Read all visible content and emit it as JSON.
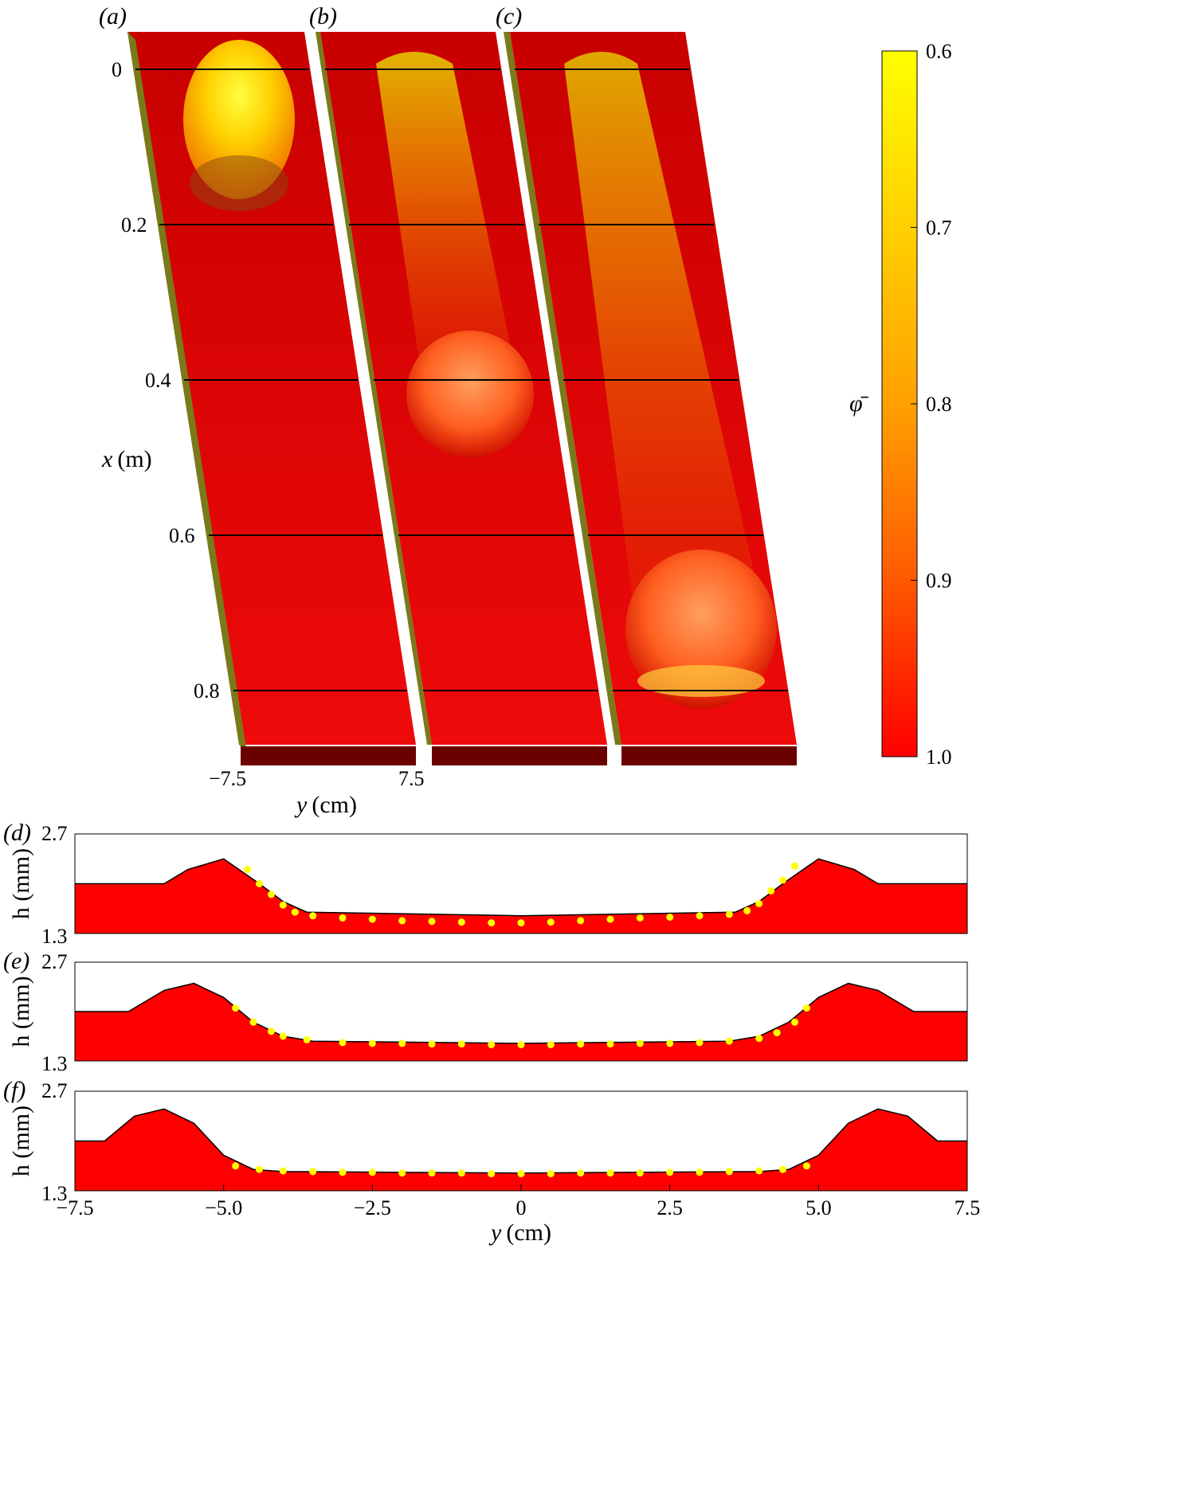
{
  "panels_3d": {
    "labels": [
      "(a)",
      "(b)",
      "(c)"
    ],
    "x_axis": {
      "var": "x",
      "unit": "(m)",
      "ticks": [
        "0",
        "0.2",
        "0.4",
        "0.6",
        "0.8"
      ]
    },
    "y_axis": {
      "var": "y",
      "unit": "(cm)",
      "ticks": [
        "−7.5",
        "7.5"
      ]
    }
  },
  "colorbar": {
    "label": "φ̄",
    "ticks": [
      "0.6",
      "0.7",
      "0.8",
      "0.9",
      "1.0"
    ],
    "colors": {
      "low": "#ffff00",
      "high": "#ff0000"
    }
  },
  "colors": {
    "fluid": "#ff0000",
    "dots": "#ffff00",
    "side": "#7a7a1a",
    "front": "#6a0000"
  },
  "chart_data": [
    {
      "type": "area",
      "panel": "(d)",
      "ylabel": "h (mm)",
      "ylim": [
        1.3,
        2.7
      ],
      "yticks": [
        "2.7",
        "1.3"
      ],
      "xlim": [
        -7.5,
        7.5
      ],
      "series": [
        {
          "style": "line",
          "x": [
            -7.5,
            -6.0,
            -5.6,
            -5.0,
            -4.4,
            -4.0,
            -3.6,
            0,
            3.6,
            4.0,
            4.4,
            5.0,
            5.6,
            6.0,
            7.5
          ],
          "y": [
            2.0,
            2.0,
            2.2,
            2.35,
            2.0,
            1.75,
            1.6,
            1.55,
            1.6,
            1.75,
            2.0,
            2.35,
            2.2,
            2.0,
            2.0
          ]
        },
        {
          "style": "dots",
          "x": [
            -4.6,
            -4.4,
            -4.2,
            -4.0,
            -3.8,
            -3.5,
            -3.0,
            -2.5,
            -2.0,
            -1.5,
            -1.0,
            -0.5,
            0,
            0.5,
            1.0,
            1.5,
            2.0,
            2.5,
            3.0,
            3.5,
            3.8,
            4.0,
            4.2,
            4.4,
            4.6
          ],
          "y": [
            2.2,
            2.0,
            1.85,
            1.7,
            1.6,
            1.55,
            1.52,
            1.5,
            1.48,
            1.47,
            1.46,
            1.45,
            1.45,
            1.46,
            1.48,
            1.5,
            1.52,
            1.53,
            1.55,
            1.57,
            1.62,
            1.72,
            1.9,
            2.05,
            2.25
          ]
        }
      ]
    },
    {
      "type": "area",
      "panel": "(e)",
      "ylabel": "h (mm)",
      "ylim": [
        1.3,
        2.7
      ],
      "yticks": [
        "2.7",
        "1.3"
      ],
      "xlim": [
        -7.5,
        7.5
      ],
      "series": [
        {
          "style": "line",
          "x": [
            -7.5,
            -6.6,
            -6.0,
            -5.5,
            -5.0,
            -4.5,
            -4.0,
            -3.5,
            0,
            3.5,
            4.0,
            4.5,
            5.0,
            5.5,
            6.0,
            6.6,
            7.5
          ],
          "y": [
            2.0,
            2.0,
            2.3,
            2.4,
            2.2,
            1.85,
            1.65,
            1.58,
            1.55,
            1.58,
            1.65,
            1.85,
            2.2,
            2.4,
            2.3,
            2.0,
            2.0
          ]
        },
        {
          "style": "dots",
          "x": [
            -4.8,
            -4.5,
            -4.2,
            -4.0,
            -3.6,
            -3.0,
            -2.5,
            -2.0,
            -1.5,
            -1.0,
            -0.5,
            0,
            0.5,
            1.0,
            1.5,
            2.0,
            2.5,
            3.0,
            3.5,
            4.0,
            4.3,
            4.6,
            4.8
          ],
          "y": [
            2.05,
            1.85,
            1.72,
            1.65,
            1.6,
            1.56,
            1.55,
            1.55,
            1.54,
            1.54,
            1.53,
            1.53,
            1.53,
            1.54,
            1.54,
            1.55,
            1.55,
            1.56,
            1.58,
            1.62,
            1.7,
            1.85,
            2.05
          ]
        }
      ]
    },
    {
      "type": "area",
      "panel": "(f)",
      "ylabel": "h (mm)",
      "ylim": [
        1.3,
        2.7
      ],
      "yticks": [
        "2.7",
        "1.3"
      ],
      "xlim": [
        -7.5,
        7.5
      ],
      "xticks": [
        "−7.5",
        "−5.0",
        "−2.5",
        "0",
        "2.5",
        "5.0",
        "7.5"
      ],
      "xticks_values": [
        -7.5,
        -5.0,
        -2.5,
        0,
        2.5,
        5.0,
        7.5
      ],
      "xlabel_var": "y",
      "xlabel_unit": "(cm)",
      "series": [
        {
          "style": "line",
          "x": [
            -7.5,
            -7.0,
            -6.5,
            -6.0,
            -5.5,
            -5.0,
            -4.5,
            -4.0,
            0,
            4.0,
            4.5,
            5.0,
            5.5,
            6.0,
            6.5,
            7.0,
            7.5
          ],
          "y": [
            2.0,
            2.0,
            2.35,
            2.45,
            2.25,
            1.8,
            1.6,
            1.57,
            1.55,
            1.57,
            1.6,
            1.8,
            2.25,
            2.45,
            2.35,
            2.0,
            2.0
          ]
        },
        {
          "style": "dots",
          "x": [
            -4.8,
            -4.4,
            -4.0,
            -3.5,
            -3.0,
            -2.5,
            -2.0,
            -1.5,
            -1.0,
            -0.5,
            0,
            0.5,
            1.0,
            1.5,
            2.0,
            2.5,
            3.0,
            3.5,
            4.0,
            4.4,
            4.8
          ],
          "y": [
            1.65,
            1.6,
            1.58,
            1.57,
            1.56,
            1.56,
            1.55,
            1.55,
            1.55,
            1.54,
            1.54,
            1.54,
            1.55,
            1.55,
            1.55,
            1.56,
            1.56,
            1.57,
            1.58,
            1.6,
            1.65
          ]
        }
      ]
    }
  ]
}
